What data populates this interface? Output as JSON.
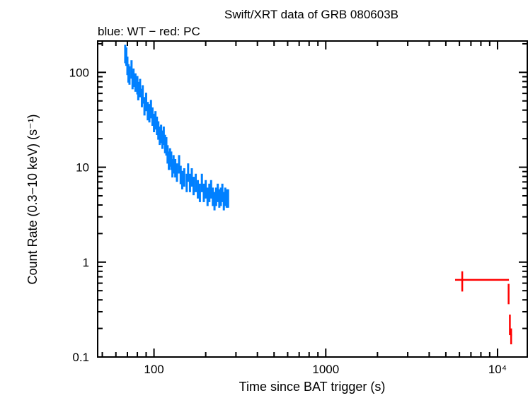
{
  "chart_data": {
    "type": "scatter",
    "title": "Swift/XRT data of GRB 080603B",
    "subtitle": "blue: WT − red: PC",
    "xlabel": "Time since BAT trigger (s)",
    "ylabel": "Count Rate (0.3−10 keV) (s⁻¹)",
    "xscale": "log",
    "yscale": "log",
    "xlim": [
      47,
      14900
    ],
    "ylim": [
      0.1,
      214
    ],
    "x_ticks": [
      {
        "v": 100,
        "label": "100"
      },
      {
        "v": 1000,
        "label": "1000"
      },
      {
        "v": 10000,
        "label": "10⁴"
      }
    ],
    "y_ticks": [
      {
        "v": 0.1,
        "label": "0.1"
      },
      {
        "v": 1,
        "label": "1"
      },
      {
        "v": 10,
        "label": "10"
      },
      {
        "v": 100,
        "label": "100"
      }
    ],
    "grid": false,
    "series": [
      {
        "name": "WT",
        "color": "#0080ff",
        "points": [
          [
            68,
            160
          ],
          [
            69,
            150
          ],
          [
            70,
            120
          ],
          [
            71,
            100
          ],
          [
            72,
            95
          ],
          [
            74,
            110
          ],
          [
            75,
            85
          ],
          [
            76,
            90
          ],
          [
            78,
            80
          ],
          [
            80,
            75
          ],
          [
            81,
            65
          ],
          [
            83,
            70
          ],
          [
            85,
            55
          ],
          [
            86,
            60
          ],
          [
            88,
            45
          ],
          [
            90,
            50
          ],
          [
            92,
            40
          ],
          [
            94,
            38
          ],
          [
            96,
            42
          ],
          [
            98,
            35
          ],
          [
            100,
            30
          ],
          [
            102,
            32
          ],
          [
            104,
            28
          ],
          [
            106,
            25
          ],
          [
            108,
            22
          ],
          [
            110,
            23
          ],
          [
            112,
            20
          ],
          [
            114,
            22
          ],
          [
            116,
            18
          ],
          [
            118,
            17
          ],
          [
            120,
            14
          ],
          [
            122,
            12
          ],
          [
            124,
            13
          ],
          [
            126,
            12
          ],
          [
            128,
            10
          ],
          [
            130,
            11
          ],
          [
            133,
            10
          ],
          [
            136,
            9
          ],
          [
            140,
            11
          ],
          [
            143,
            8.5
          ],
          [
            146,
            7.5
          ],
          [
            150,
            8
          ],
          [
            155,
            7
          ],
          [
            158,
            9
          ],
          [
            162,
            7
          ],
          [
            166,
            8
          ],
          [
            170,
            6.5
          ],
          [
            175,
            7
          ],
          [
            180,
            6
          ],
          [
            185,
            5.5
          ],
          [
            190,
            7
          ],
          [
            195,
            5.5
          ],
          [
            200,
            6
          ],
          [
            205,
            5
          ],
          [
            210,
            5.5
          ],
          [
            215,
            6
          ],
          [
            220,
            5
          ],
          [
            225,
            4.5
          ],
          [
            230,
            5
          ],
          [
            235,
            5.5
          ],
          [
            240,
            4.8
          ],
          [
            245,
            5
          ],
          [
            250,
            5.5
          ],
          [
            255,
            4.5
          ],
          [
            260,
            5
          ],
          [
            265,
            4.8
          ],
          [
            270,
            4.8
          ]
        ]
      },
      {
        "name": "PC",
        "color": "#ff0000",
        "points": [
          {
            "x": 6230,
            "xlo": 5660,
            "xhi": 11650,
            "y": 0.65,
            "ylo": 0.49,
            "yhi": 0.8
          },
          {
            "x": 11600,
            "xlo": 11500,
            "xhi": 11700,
            "y": 0.486,
            "ylo": 0.36,
            "yhi": 0.59
          },
          {
            "x": 11800,
            "xlo": 11700,
            "xhi": 11900,
            "y": 0.23,
            "ylo": 0.17,
            "yhi": 0.28
          },
          {
            "x": 12000,
            "xlo": 11900,
            "xhi": 12150,
            "y": 0.17,
            "ylo": 0.136,
            "yhi": 0.2
          }
        ]
      }
    ]
  }
}
